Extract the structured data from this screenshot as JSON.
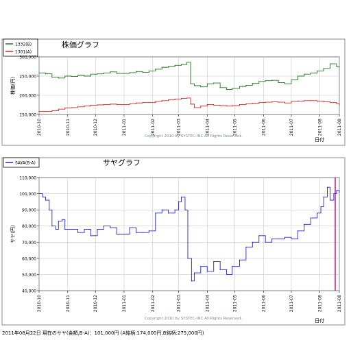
{
  "chart_data": [
    {
      "type": "line",
      "title": "株価グラフ",
      "xlabel": "日付",
      "ylabel": "株価(円)",
      "copyright": "Copyright 2010 by SYSTEC-INC All Rights Reserved.",
      "x_range": [
        "2010-10-01",
        "2011-08-22"
      ],
      "ylim": [
        150000,
        300000
      ],
      "yticks": [
        "150,000",
        "200,000",
        "250,000",
        "300,000"
      ],
      "xticks": [
        "2010-10",
        "2010-11",
        "2010-12",
        "2011-01",
        "2011-02",
        "2011-03",
        "2011-04",
        "2011-05",
        "2011-06",
        "2011-07",
        "2011-08",
        "2011-08"
      ],
      "legend_position": "top-left",
      "grid": true,
      "series": [
        {
          "name": "1332(B)",
          "color": "#1a7a1a",
          "x": [
            "2010-10-01",
            "2010-10-08",
            "2010-10-15",
            "2010-10-22",
            "2010-10-29",
            "2010-11-05",
            "2010-11-12",
            "2010-11-19",
            "2010-11-26",
            "2010-12-03",
            "2010-12-10",
            "2010-12-17",
            "2010-12-24",
            "2011-01-07",
            "2011-01-14",
            "2011-01-21",
            "2011-01-28",
            "2011-02-04",
            "2011-02-11",
            "2011-02-18",
            "2011-02-25",
            "2011-03-04",
            "2011-03-10",
            "2011-03-14",
            "2011-03-18",
            "2011-03-25",
            "2011-04-01",
            "2011-04-08",
            "2011-04-15",
            "2011-04-22",
            "2011-04-28",
            "2011-05-06",
            "2011-05-13",
            "2011-05-20",
            "2011-05-27",
            "2011-06-03",
            "2011-06-10",
            "2011-06-17",
            "2011-06-24",
            "2011-07-01",
            "2011-07-08",
            "2011-07-15",
            "2011-07-22",
            "2011-07-29",
            "2011-08-05",
            "2011-08-12",
            "2011-08-19",
            "2011-08-22"
          ],
          "values": [
            258000,
            256000,
            247000,
            245000,
            250000,
            249000,
            252000,
            250000,
            255000,
            256000,
            258000,
            261000,
            257000,
            259000,
            262000,
            260000,
            263000,
            268000,
            273000,
            275000,
            278000,
            280000,
            286000,
            230000,
            225000,
            222000,
            230000,
            232000,
            220000,
            215000,
            218000,
            223000,
            226000,
            231000,
            236000,
            238000,
            239000,
            233000,
            230000,
            240000,
            250000,
            255000,
            258000,
            263000,
            270000,
            282000,
            274000,
            275000
          ]
        },
        {
          "name": "1301(A)",
          "color": "#e02020",
          "x": [
            "2010-10-01",
            "2010-10-08",
            "2010-10-15",
            "2010-10-22",
            "2010-10-29",
            "2010-11-05",
            "2010-11-12",
            "2010-11-19",
            "2010-11-26",
            "2010-12-03",
            "2010-12-10",
            "2010-12-17",
            "2010-12-24",
            "2011-01-07",
            "2011-01-14",
            "2011-01-21",
            "2011-01-28",
            "2011-02-04",
            "2011-02-11",
            "2011-02-18",
            "2011-02-25",
            "2011-03-04",
            "2011-03-10",
            "2011-03-14",
            "2011-03-18",
            "2011-03-25",
            "2011-04-01",
            "2011-04-08",
            "2011-04-15",
            "2011-04-22",
            "2011-04-28",
            "2011-05-06",
            "2011-05-13",
            "2011-05-20",
            "2011-05-27",
            "2011-06-03",
            "2011-06-10",
            "2011-06-17",
            "2011-06-24",
            "2011-07-01",
            "2011-07-08",
            "2011-07-15",
            "2011-07-22",
            "2011-07-29",
            "2011-08-05",
            "2011-08-12",
            "2011-08-19",
            "2011-08-22"
          ],
          "values": [
            158000,
            158000,
            160000,
            164000,
            167000,
            168000,
            170000,
            172000,
            174000,
            175000,
            176000,
            177000,
            176000,
            178000,
            180000,
            181000,
            181000,
            184000,
            186000,
            188000,
            190000,
            192000,
            193000,
            177000,
            168000,
            172000,
            176000,
            174000,
            173000,
            172000,
            173000,
            176000,
            178000,
            179000,
            181000,
            182000,
            183000,
            182000,
            180000,
            184000,
            185000,
            186000,
            186000,
            185000,
            183000,
            181000,
            178000,
            174000
          ]
        }
      ]
    },
    {
      "type": "line",
      "title": "サヤグラフ",
      "xlabel": "日付",
      "ylabel": "サヤ(円)",
      "copyright": "Copyright 2010 by SYSTEC-INC All Rights Reserved.",
      "x_range": [
        "2010-10-01",
        "2011-08-22"
      ],
      "ylim": [
        40000,
        110000
      ],
      "yticks": [
        "40,000",
        "50,000",
        "60,000",
        "70,000",
        "80,000",
        "90,000",
        "100,000",
        "110,000"
      ],
      "xticks": [
        "2010-10",
        "2010-11",
        "2010-12",
        "2011-01",
        "2011-02",
        "2011-03",
        "2011-04",
        "2011-05",
        "2011-06",
        "2011-07",
        "2011-08",
        "2011-08"
      ],
      "legend_position": "top-left",
      "grid": true,
      "current_marker_x": "2011-08-22",
      "current_marker_color": "#cc2299",
      "series": [
        {
          "name": "SAYA(B-A)",
          "color": "#2020e0",
          "x": [
            "2010-10-01",
            "2010-10-05",
            "2010-10-08",
            "2010-10-12",
            "2010-10-15",
            "2010-10-19",
            "2010-10-22",
            "2010-10-26",
            "2010-10-29",
            "2010-11-05",
            "2010-11-12",
            "2010-11-19",
            "2010-11-26",
            "2010-12-03",
            "2010-12-10",
            "2010-12-17",
            "2010-12-24",
            "2011-01-07",
            "2011-01-14",
            "2011-01-21",
            "2011-01-28",
            "2011-02-04",
            "2011-02-11",
            "2011-02-18",
            "2011-02-25",
            "2011-03-01",
            "2011-03-04",
            "2011-03-08",
            "2011-03-11",
            "2011-03-15",
            "2011-03-18",
            "2011-03-25",
            "2011-04-01",
            "2011-04-08",
            "2011-04-15",
            "2011-04-22",
            "2011-04-28",
            "2011-05-06",
            "2011-05-13",
            "2011-05-20",
            "2011-05-27",
            "2011-06-03",
            "2011-06-10",
            "2011-06-17",
            "2011-06-24",
            "2011-07-01",
            "2011-07-08",
            "2011-07-15",
            "2011-07-22",
            "2011-07-29",
            "2011-08-02",
            "2011-08-05",
            "2011-08-09",
            "2011-08-12",
            "2011-08-16",
            "2011-08-19",
            "2011-08-22"
          ],
          "values": [
            100000,
            98000,
            96000,
            90000,
            80000,
            78000,
            83000,
            84000,
            78000,
            78000,
            76000,
            78000,
            74000,
            78000,
            80000,
            79000,
            75000,
            79000,
            76000,
            76000,
            77000,
            88000,
            90000,
            88000,
            90000,
            95000,
            98000,
            90000,
            60000,
            46000,
            51000,
            55000,
            52000,
            58000,
            53000,
            50000,
            55000,
            59000,
            67000,
            70000,
            74000,
            70000,
            72000,
            72000,
            73000,
            72000,
            77000,
            81000,
            85000,
            88000,
            92000,
            98000,
            104000,
            96000,
            100000,
            102000,
            101000
          ]
        }
      ]
    }
  ],
  "legend": {
    "price_items": [
      "1332(B)",
      "1301(A)"
    ],
    "saya_items": [
      "SAYA(B-A)"
    ]
  },
  "footer": {
    "text": "2011年08月22日 現在のサヤ(金額,B-A)：101,000円 (A銘柄:174,000円,B銘柄:275,000円)"
  }
}
